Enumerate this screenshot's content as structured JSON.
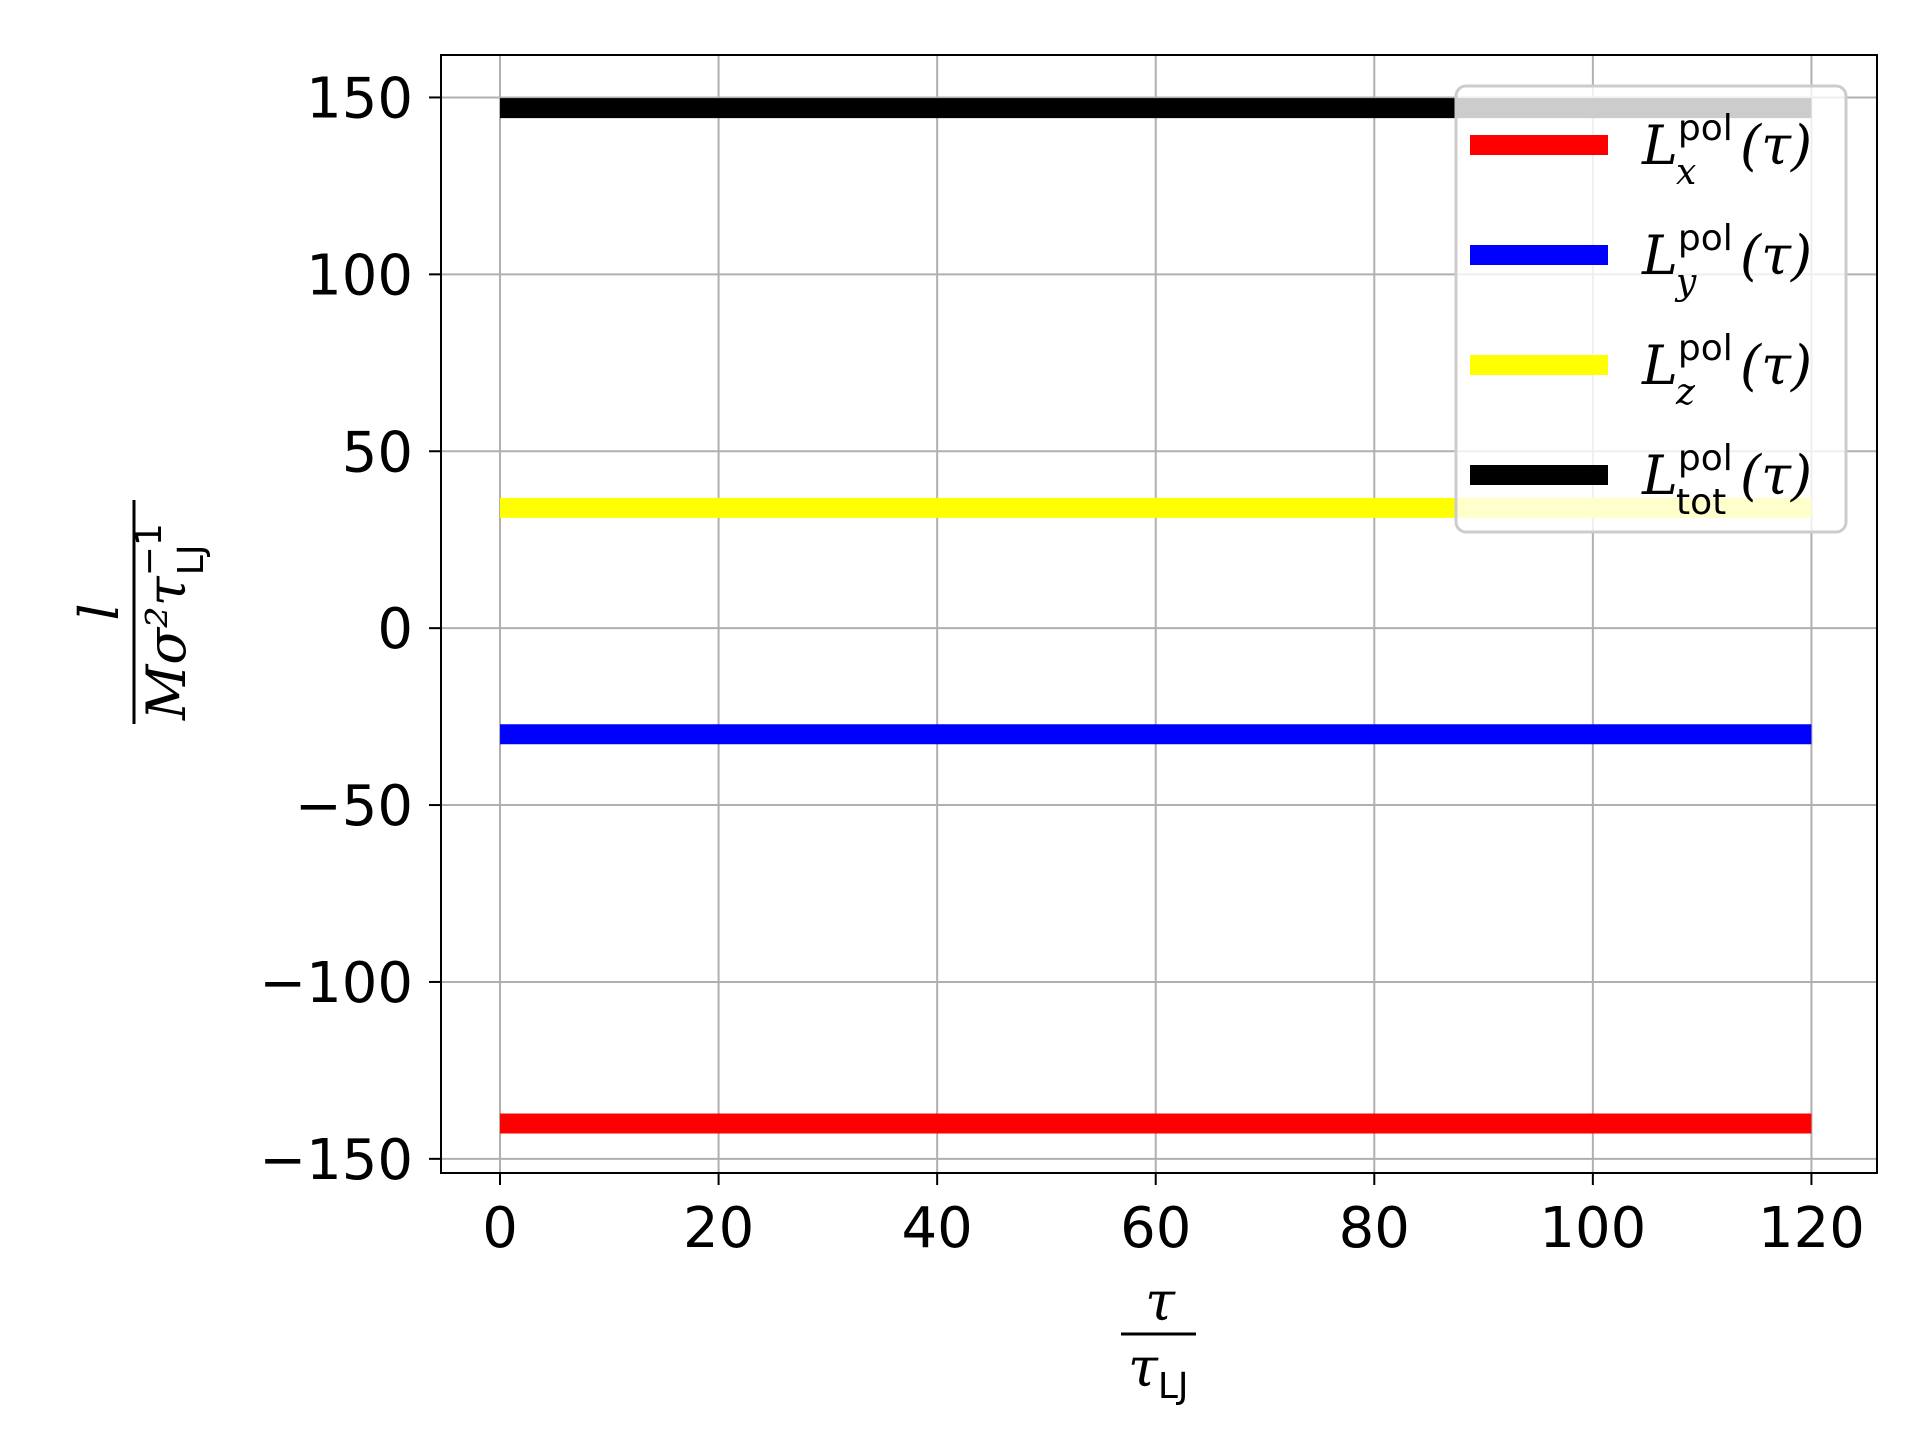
{
  "chart_data": {
    "type": "line",
    "x": [
      0,
      120
    ],
    "xlim": [
      -5.4,
      126
    ],
    "ylim": [
      -154,
      162
    ],
    "xticks": [
      0,
      20,
      40,
      60,
      80,
      100,
      120
    ],
    "yticks": [
      -150,
      -100,
      -50,
      0,
      50,
      100,
      150
    ],
    "xtick_labels": [
      "0",
      "20",
      "40",
      "60",
      "80",
      "100",
      "120"
    ],
    "ytick_labels": [
      "−150",
      "−100",
      "−50",
      "0",
      "50",
      "100",
      "150"
    ],
    "grid": true,
    "legend_position": "top-right",
    "xlabel": {
      "numerator": "τ",
      "denominator": "τ",
      "denominator_sub": "LJ"
    },
    "ylabel": {
      "numerator": "l",
      "denominator": "Mσ²τ",
      "denominator_sub": "LJ",
      "denominator_sup": "−1"
    },
    "series": [
      {
        "name": "L_x^pol(τ)",
        "base": "L",
        "sub": "x",
        "sup": "pol",
        "arg": "(τ)",
        "color": "#ff0000",
        "values": [
          -140,
          -140
        ]
      },
      {
        "name": "L_y^pol(τ)",
        "base": "L",
        "sub": "y",
        "sup": "pol",
        "arg": "(τ)",
        "color": "#0000ff",
        "values": [
          -30,
          -30
        ]
      },
      {
        "name": "L_z^pol(τ)",
        "base": "L",
        "sub": "z",
        "sup": "pol",
        "arg": "(τ)",
        "color": "#ffff00",
        "values": [
          34,
          34
        ]
      },
      {
        "name": "L_tot^pol(τ)",
        "base": "L",
        "sub": "tot",
        "sup": "pol",
        "arg": "(τ)",
        "color": "#000000",
        "values": [
          147,
          147
        ]
      }
    ]
  }
}
